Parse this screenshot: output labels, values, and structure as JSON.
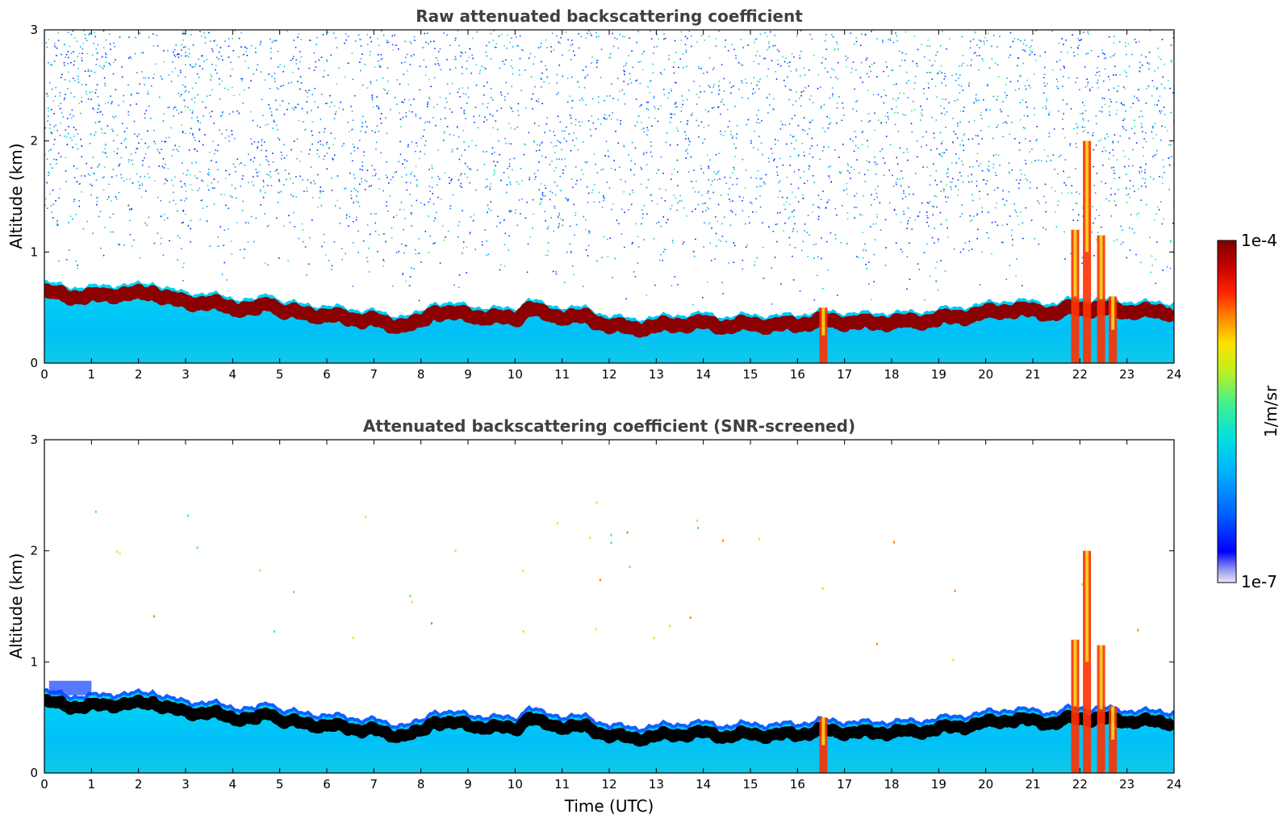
{
  "chart_data": [
    {
      "type": "heatmap",
      "title": "Raw attenuated backscattering coefficient",
      "ylabel": "Altitude (km)",
      "xlabel": "",
      "xlim": [
        0,
        24
      ],
      "ylim": [
        0,
        3
      ],
      "xticks": [
        "0",
        "1",
        "2",
        "3",
        "4",
        "5",
        "6",
        "7",
        "8",
        "9",
        "10",
        "11",
        "12",
        "13",
        "14",
        "15",
        "16",
        "17",
        "18",
        "19",
        "20",
        "21",
        "22",
        "23",
        "24"
      ],
      "yticks": [
        "0",
        "1",
        "2",
        "3"
      ],
      "layer_top_km": [
        [
          0,
          0.7
        ],
        [
          0.6,
          0.66
        ],
        [
          1,
          0.66
        ],
        [
          1.5,
          0.68
        ],
        [
          2,
          0.68
        ],
        [
          2.3,
          0.7
        ],
        [
          2.7,
          0.63
        ],
        [
          3,
          0.61
        ],
        [
          3.5,
          0.6
        ],
        [
          4,
          0.56
        ],
        [
          4.5,
          0.54
        ],
        [
          4.8,
          0.61
        ],
        [
          5,
          0.54
        ],
        [
          5.5,
          0.5
        ],
        [
          6,
          0.49
        ],
        [
          6.5,
          0.46
        ],
        [
          7,
          0.45
        ],
        [
          7.3,
          0.4
        ],
        [
          8,
          0.42
        ],
        [
          8.3,
          0.53
        ],
        [
          9,
          0.49
        ],
        [
          9.5,
          0.47
        ],
        [
          10,
          0.46
        ],
        [
          10.3,
          0.56
        ],
        [
          10.6,
          0.5
        ],
        [
          11,
          0.48
        ],
        [
          11.5,
          0.47
        ],
        [
          12,
          0.4
        ],
        [
          12.5,
          0.37
        ],
        [
          13,
          0.39
        ],
        [
          13.5,
          0.41
        ],
        [
          14,
          0.42
        ],
        [
          14.5,
          0.39
        ],
        [
          15,
          0.41
        ],
        [
          15.5,
          0.4
        ],
        [
          16,
          0.41
        ],
        [
          16.5,
          0.44
        ],
        [
          17,
          0.43
        ],
        [
          17.5,
          0.42
        ],
        [
          18,
          0.43
        ],
        [
          18.5,
          0.43
        ],
        [
          19,
          0.46
        ],
        [
          19.5,
          0.48
        ],
        [
          20,
          0.51
        ],
        [
          20.5,
          0.54
        ],
        [
          21,
          0.53
        ],
        [
          21.5,
          0.51
        ],
        [
          21.8,
          0.55
        ],
        [
          22,
          0.55
        ],
        [
          22.5,
          0.55
        ],
        [
          23,
          0.53
        ],
        [
          23.5,
          0.52
        ],
        [
          24,
          0.52
        ]
      ],
      "cloud_spikes": [
        {
          "x": 16.55,
          "bottom_km": 0.0,
          "top_km": 0.5
        },
        {
          "x": 21.9,
          "bottom_km": 0.0,
          "top_km": 1.2
        },
        {
          "x": 22.15,
          "bottom_km": 0.0,
          "top_km": 2.0
        },
        {
          "x": 22.45,
          "bottom_km": 0.0,
          "top_km": 1.15
        },
        {
          "x": 22.7,
          "bottom_km": 0.0,
          "top_km": 0.6
        }
      ]
    },
    {
      "type": "heatmap",
      "title": "Attenuated backscattering coefficient (SNR-screened)",
      "ylabel": "Altitude (km)",
      "xlabel": "Time (UTC)",
      "xlim": [
        0,
        24
      ],
      "ylim": [
        0,
        3
      ],
      "xticks": [
        "0",
        "1",
        "2",
        "3",
        "4",
        "5",
        "6",
        "7",
        "8",
        "9",
        "10",
        "11",
        "12",
        "13",
        "14",
        "15",
        "16",
        "17",
        "18",
        "19",
        "20",
        "21",
        "22",
        "23",
        "24"
      ],
      "yticks": [
        "0",
        "1",
        "2",
        "3"
      ]
    }
  ],
  "colorbar": {
    "label": "1/m/sr",
    "max_label": "1e-4",
    "min_label": "1e-7",
    "colors": [
      "#e8e8f8",
      "#9090f0",
      "#0000ff",
      "#0060ff",
      "#00b0ff",
      "#00e0e0",
      "#40f090",
      "#c0f020",
      "#ffe000",
      "#ff8000",
      "#ff2000",
      "#c00000",
      "#800000"
    ]
  }
}
